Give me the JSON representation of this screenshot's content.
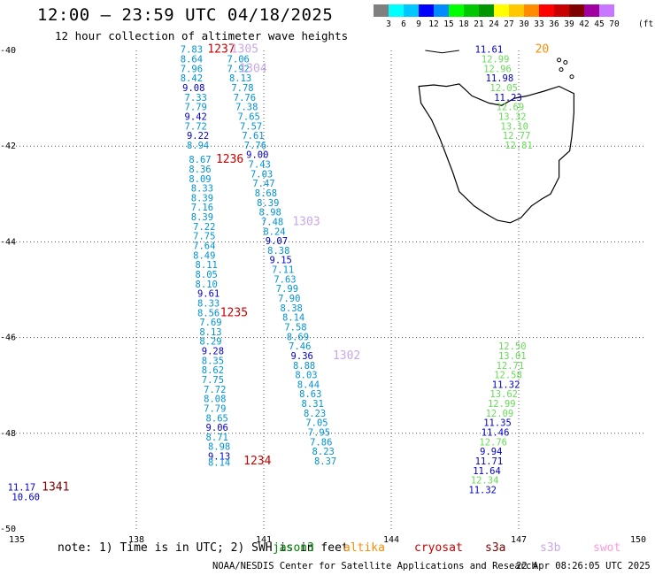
{
  "header": {
    "title": "12:00 – 23:59 UTC 04/18/2025",
    "subtitle": "12 hour collection of altimeter wave heights"
  },
  "colorbar": {
    "colors": [
      "#808080",
      "#00ffff",
      "#00c8ff",
      "#0000ff",
      "#008cff",
      "#00ff00",
      "#00c800",
      "#009600",
      "#ffff00",
      "#ffc800",
      "#ff8c00",
      "#ff0000",
      "#c80000",
      "#800000",
      "#a000a0",
      "#c878ff",
      "#ffffff",
      "#ffffff"
    ],
    "labels": [
      "3",
      "6",
      "9",
      "12",
      "15",
      "18",
      "21",
      "24",
      "27",
      "30",
      "33",
      "36",
      "39",
      "42",
      "45",
      "70"
    ],
    "unit": "(ft)"
  },
  "chart_data": {
    "type": "scatter",
    "xlim": [
      135,
      150
    ],
    "ylim": [
      -50,
      -40
    ],
    "x_ticks": [
      "135",
      "138",
      "141",
      "144",
      "147",
      "150"
    ],
    "y_ticks": [
      "-40",
      "-42",
      "-44",
      "-46",
      "-48",
      "-50"
    ],
    "labels": [
      {
        "lon": 139.3,
        "lat": -40.05,
        "text": "7.83",
        "color": "#0093d4"
      },
      {
        "lon": 139.3,
        "lat": -40.25,
        "text": "8.64",
        "color": "#0093d4"
      },
      {
        "lon": 139.3,
        "lat": -40.45,
        "text": "7.96",
        "color": "#0093d4"
      },
      {
        "lon": 139.3,
        "lat": -40.65,
        "text": "8.42",
        "color": "#0093d4"
      },
      {
        "lon": 139.35,
        "lat": -40.85,
        "text": "9.08",
        "color": "#0000cc"
      },
      {
        "lon": 139.4,
        "lat": -41.05,
        "text": "7.33",
        "color": "#0093d4"
      },
      {
        "lon": 139.4,
        "lat": -41.25,
        "text": "7.79",
        "color": "#0093d4"
      },
      {
        "lon": 139.4,
        "lat": -41.45,
        "text": "9.42",
        "color": "#0000cc"
      },
      {
        "lon": 139.4,
        "lat": -41.65,
        "text": "7.72",
        "color": "#0093d4"
      },
      {
        "lon": 139.45,
        "lat": -41.85,
        "text": "9.22",
        "color": "#0000cc"
      },
      {
        "lon": 139.45,
        "lat": -42.05,
        "text": "8.94",
        "color": "#0093d4"
      },
      {
        "lon": 139.5,
        "lat": -42.35,
        "text": "8.67",
        "color": "#0093d4"
      },
      {
        "lon": 139.5,
        "lat": -42.55,
        "text": "8.36",
        "color": "#0093d4"
      },
      {
        "lon": 139.5,
        "lat": -42.75,
        "text": "8.09",
        "color": "#0093d4"
      },
      {
        "lon": 139.55,
        "lat": -42.95,
        "text": "8.33",
        "color": "#0093d4"
      },
      {
        "lon": 139.55,
        "lat": -43.15,
        "text": "8.39",
        "color": "#0093d4"
      },
      {
        "lon": 139.55,
        "lat": -43.35,
        "text": "7.16",
        "color": "#0093d4"
      },
      {
        "lon": 139.55,
        "lat": -43.55,
        "text": "8.39",
        "color": "#0093d4"
      },
      {
        "lon": 139.6,
        "lat": -43.75,
        "text": "7.22",
        "color": "#0093d4"
      },
      {
        "lon": 139.6,
        "lat": -43.95,
        "text": "7.75",
        "color": "#0093d4"
      },
      {
        "lon": 139.6,
        "lat": -44.15,
        "text": "7.64",
        "color": "#0093d4"
      },
      {
        "lon": 139.6,
        "lat": -44.35,
        "text": "8.49",
        "color": "#0093d4"
      },
      {
        "lon": 139.65,
        "lat": -44.55,
        "text": "8.11",
        "color": "#0093d4"
      },
      {
        "lon": 139.65,
        "lat": -44.75,
        "text": "8.05",
        "color": "#0093d4"
      },
      {
        "lon": 139.65,
        "lat": -44.95,
        "text": "8.10",
        "color": "#0093d4"
      },
      {
        "lon": 139.7,
        "lat": -45.15,
        "text": "9.61",
        "color": "#0000cc"
      },
      {
        "lon": 139.7,
        "lat": -45.35,
        "text": "8.33",
        "color": "#0093d4"
      },
      {
        "lon": 139.7,
        "lat": -45.55,
        "text": "8.56",
        "color": "#0093d4"
      },
      {
        "lon": 139.75,
        "lat": -45.75,
        "text": "7.69",
        "color": "#0093d4"
      },
      {
        "lon": 139.75,
        "lat": -45.95,
        "text": "8.13",
        "color": "#0093d4"
      },
      {
        "lon": 139.75,
        "lat": -46.15,
        "text": "8.29",
        "color": "#0093d4"
      },
      {
        "lon": 139.8,
        "lat": -46.35,
        "text": "9.28",
        "color": "#0000cc"
      },
      {
        "lon": 139.8,
        "lat": -46.55,
        "text": "8.35",
        "color": "#0093d4"
      },
      {
        "lon": 139.8,
        "lat": -46.75,
        "text": "8.62",
        "color": "#0093d4"
      },
      {
        "lon": 139.8,
        "lat": -46.95,
        "text": "7.75",
        "color": "#0093d4"
      },
      {
        "lon": 139.85,
        "lat": -47.15,
        "text": "7.72",
        "color": "#0093d4"
      },
      {
        "lon": 139.85,
        "lat": -47.35,
        "text": "8.08",
        "color": "#0093d4"
      },
      {
        "lon": 139.85,
        "lat": -47.55,
        "text": "7.79",
        "color": "#0093d4"
      },
      {
        "lon": 139.9,
        "lat": -47.75,
        "text": "8.65",
        "color": "#0093d4"
      },
      {
        "lon": 139.9,
        "lat": -47.95,
        "text": "9.06",
        "color": "#0000cc"
      },
      {
        "lon": 139.9,
        "lat": -48.15,
        "text": "8.71",
        "color": "#0093d4"
      },
      {
        "lon": 139.95,
        "lat": -48.35,
        "text": "8.98",
        "color": "#0093d4"
      },
      {
        "lon": 139.95,
        "lat": -48.55,
        "text": "9.13",
        "color": "#0000cc"
      },
      {
        "lon": 139.95,
        "lat": -48.68,
        "text": "8.14",
        "color": "#0093d4"
      },
      {
        "lon": 140.4,
        "lat": -40.25,
        "text": "7.06",
        "color": "#0093d4"
      },
      {
        "lon": 140.4,
        "lat": -40.45,
        "text": "7.92",
        "color": "#0093d4"
      },
      {
        "lon": 140.45,
        "lat": -40.65,
        "text": "8.13",
        "color": "#0093d4"
      },
      {
        "lon": 140.5,
        "lat": -40.85,
        "text": "7.78",
        "color": "#0093d4"
      },
      {
        "lon": 140.55,
        "lat": -41.05,
        "text": "7.76",
        "color": "#0093d4"
      },
      {
        "lon": 140.6,
        "lat": -41.25,
        "text": "7.38",
        "color": "#0093d4"
      },
      {
        "lon": 140.65,
        "lat": -41.45,
        "text": "7.65",
        "color": "#0093d4"
      },
      {
        "lon": 140.7,
        "lat": -41.65,
        "text": "7.57",
        "color": "#0093d4"
      },
      {
        "lon": 140.75,
        "lat": -41.85,
        "text": "7.61",
        "color": "#0093d4"
      },
      {
        "lon": 140.8,
        "lat": -42.05,
        "text": "7.76",
        "color": "#0093d4"
      },
      {
        "lon": 140.85,
        "lat": -42.25,
        "text": "9.00",
        "color": "#0000cc"
      },
      {
        "lon": 140.9,
        "lat": -42.45,
        "text": "7.43",
        "color": "#0093d4"
      },
      {
        "lon": 140.95,
        "lat": -42.65,
        "text": "7.03",
        "color": "#0093d4"
      },
      {
        "lon": 141.0,
        "lat": -42.85,
        "text": "7.47",
        "color": "#0093d4"
      },
      {
        "lon": 141.05,
        "lat": -43.05,
        "text": "8.68",
        "color": "#0093d4"
      },
      {
        "lon": 141.1,
        "lat": -43.25,
        "text": "8.39",
        "color": "#0093d4"
      },
      {
        "lon": 141.15,
        "lat": -43.45,
        "text": "8.98",
        "color": "#0093d4"
      },
      {
        "lon": 141.2,
        "lat": -43.65,
        "text": "7.48",
        "color": "#0093d4"
      },
      {
        "lon": 141.25,
        "lat": -43.85,
        "text": "8.24",
        "color": "#0093d4"
      },
      {
        "lon": 141.3,
        "lat": -44.05,
        "text": "9.07",
        "color": "#0000cc"
      },
      {
        "lon": 141.35,
        "lat": -44.25,
        "text": "8.38",
        "color": "#0093d4"
      },
      {
        "lon": 141.4,
        "lat": -44.45,
        "text": "9.15",
        "color": "#0000cc"
      },
      {
        "lon": 141.45,
        "lat": -44.65,
        "text": "7.11",
        "color": "#0093d4"
      },
      {
        "lon": 141.5,
        "lat": -44.85,
        "text": "7.63",
        "color": "#0093d4"
      },
      {
        "lon": 141.55,
        "lat": -45.05,
        "text": "7.99",
        "color": "#0093d4"
      },
      {
        "lon": 141.6,
        "lat": -45.25,
        "text": "7.90",
        "color": "#0093d4"
      },
      {
        "lon": 141.65,
        "lat": -45.45,
        "text": "8.38",
        "color": "#0093d4"
      },
      {
        "lon": 141.7,
        "lat": -45.65,
        "text": "8.14",
        "color": "#0093d4"
      },
      {
        "lon": 141.75,
        "lat": -45.85,
        "text": "7.58",
        "color": "#0093d4"
      },
      {
        "lon": 141.8,
        "lat": -46.05,
        "text": "8.69",
        "color": "#0093d4"
      },
      {
        "lon": 141.85,
        "lat": -46.25,
        "text": "7.46",
        "color": "#0093d4"
      },
      {
        "lon": 141.9,
        "lat": -46.45,
        "text": "9.36",
        "color": "#0000cc"
      },
      {
        "lon": 141.95,
        "lat": -46.65,
        "text": "8.88",
        "color": "#0093d4"
      },
      {
        "lon": 142.0,
        "lat": -46.85,
        "text": "8.03",
        "color": "#0093d4"
      },
      {
        "lon": 142.05,
        "lat": -47.05,
        "text": "8.44",
        "color": "#0093d4"
      },
      {
        "lon": 142.1,
        "lat": -47.25,
        "text": "8.63",
        "color": "#0093d4"
      },
      {
        "lon": 142.15,
        "lat": -47.45,
        "text": "8.31",
        "color": "#0093d4"
      },
      {
        "lon": 142.2,
        "lat": -47.65,
        "text": "8.23",
        "color": "#0093d4"
      },
      {
        "lon": 142.25,
        "lat": -47.85,
        "text": "7.05",
        "color": "#0093d4"
      },
      {
        "lon": 142.3,
        "lat": -48.05,
        "text": "7.95",
        "color": "#0093d4"
      },
      {
        "lon": 142.35,
        "lat": -48.25,
        "text": "7.86",
        "color": "#0093d4"
      },
      {
        "lon": 142.4,
        "lat": -48.45,
        "text": "8.23",
        "color": "#0093d4"
      },
      {
        "lon": 142.45,
        "lat": -48.65,
        "text": "8.37",
        "color": "#0093d4"
      },
      {
        "lon": 146.3,
        "lat": -40.05,
        "text": "11.61",
        "color": "#0000cc"
      },
      {
        "lon": 146.45,
        "lat": -40.25,
        "text": "12.99",
        "color": "#66dd55"
      },
      {
        "lon": 146.5,
        "lat": -40.45,
        "text": "12.96",
        "color": "#66dd55"
      },
      {
        "lon": 146.55,
        "lat": -40.65,
        "text": "11.98",
        "color": "#0000cc"
      },
      {
        "lon": 146.65,
        "lat": -40.85,
        "text": "12.05",
        "color": "#66dd55"
      },
      {
        "lon": 146.75,
        "lat": -41.05,
        "text": "11.23",
        "color": "#0000cc"
      },
      {
        "lon": 146.8,
        "lat": -41.25,
        "text": "12.69",
        "color": "#66dd55"
      },
      {
        "lon": 146.85,
        "lat": -41.45,
        "text": "13.32",
        "color": "#66dd55"
      },
      {
        "lon": 146.9,
        "lat": -41.65,
        "text": "13.10",
        "color": "#66dd55"
      },
      {
        "lon": 146.95,
        "lat": -41.85,
        "text": "12.77",
        "color": "#66dd55"
      },
      {
        "lon": 147.0,
        "lat": -42.05,
        "text": "12.81",
        "color": "#66dd55"
      },
      {
        "lon": 146.85,
        "lat": -46.25,
        "text": "12.50",
        "color": "#66dd55"
      },
      {
        "lon": 146.85,
        "lat": -46.45,
        "text": "13.01",
        "color": "#66dd55"
      },
      {
        "lon": 146.8,
        "lat": -46.65,
        "text": "12.71",
        "color": "#66dd55"
      },
      {
        "lon": 146.75,
        "lat": -46.85,
        "text": "12.58",
        "color": "#66dd55"
      },
      {
        "lon": 146.7,
        "lat": -47.05,
        "text": "11.32",
        "color": "#0000cc"
      },
      {
        "lon": 146.65,
        "lat": -47.25,
        "text": "13.62",
        "color": "#66dd55"
      },
      {
        "lon": 146.6,
        "lat": -47.45,
        "text": "12.99",
        "color": "#66dd55"
      },
      {
        "lon": 146.55,
        "lat": -47.65,
        "text": "12.09",
        "color": "#66dd55"
      },
      {
        "lon": 146.5,
        "lat": -47.85,
        "text": "11.35",
        "color": "#0000cc"
      },
      {
        "lon": 146.45,
        "lat": -48.05,
        "text": "11.46",
        "color": "#0000cc"
      },
      {
        "lon": 146.4,
        "lat": -48.25,
        "text": "12.76",
        "color": "#66dd55"
      },
      {
        "lon": 146.35,
        "lat": -48.45,
        "text": "9.94",
        "color": "#0000cc"
      },
      {
        "lon": 146.3,
        "lat": -48.65,
        "text": "11.71",
        "color": "#0000cc"
      },
      {
        "lon": 146.25,
        "lat": -48.85,
        "text": "11.64",
        "color": "#0000cc"
      },
      {
        "lon": 146.2,
        "lat": -49.05,
        "text": "12.34",
        "color": "#66dd55"
      },
      {
        "lon": 146.15,
        "lat": -49.25,
        "text": "11.32",
        "color": "#0000cc"
      },
      {
        "lon": 135.3,
        "lat": -49.2,
        "text": "11.17",
        "color": "#0000cc"
      },
      {
        "lon": 135.4,
        "lat": -49.4,
        "text": "10.60",
        "color": "#0000cc"
      }
    ],
    "pass_ids": [
      {
        "lon": 140.0,
        "lat": -40.05,
        "text": "1237",
        "color": "#cc0000"
      },
      {
        "lon": 140.55,
        "lat": -40.05,
        "text": "1305",
        "color": "#c8a8e8"
      },
      {
        "lon": 140.75,
        "lat": -40.45,
        "text": "1304",
        "color": "#c8a8e8"
      },
      {
        "lon": 140.2,
        "lat": -42.35,
        "text": "1236",
        "color": "#cc0000"
      },
      {
        "lon": 142.0,
        "lat": -43.65,
        "text": "1303",
        "color": "#c8a8e8"
      },
      {
        "lon": 140.3,
        "lat": -45.55,
        "text": "1235",
        "color": "#cc0000"
      },
      {
        "lon": 142.95,
        "lat": -46.45,
        "text": "1302",
        "color": "#c8a8e8"
      },
      {
        "lon": 140.85,
        "lat": -48.65,
        "text": "1234",
        "color": "#cc0000"
      },
      {
        "lon": 136.1,
        "lat": -49.2,
        "text": "1341",
        "color": "#800000"
      },
      {
        "lon": 147.55,
        "lat": -40.05,
        "text": "20",
        "color": "#ff8c00"
      }
    ]
  },
  "footer": {
    "note": "note: 1) Time is in UTC; 2) SWH is in feet",
    "satellites": [
      {
        "name": "jason3",
        "color": "#008800"
      },
      {
        "name": "altika",
        "color": "#ff8c00"
      },
      {
        "name": "cryosat",
        "color": "#cc0000"
      },
      {
        "name": "s3a",
        "color": "#800000"
      },
      {
        "name": "s3b",
        "color": "#c8a8e8"
      },
      {
        "name": "swot",
        "color": "#ff99dd"
      }
    ],
    "credit": "NOAA/NESDIS Center for Satellite Applications and Research",
    "timestamp": "22 Apr 08:26:05 UTC 2025"
  }
}
